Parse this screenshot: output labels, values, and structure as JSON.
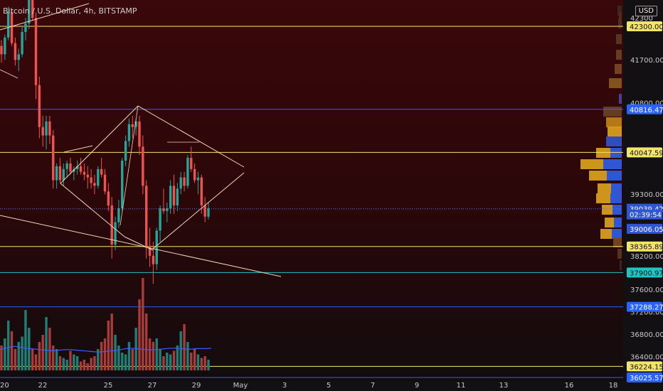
{
  "title": "Bitcoin / U.S. Dollar, 4h, BITSTAMP",
  "currency_button": "USD",
  "colors": {
    "up": "#26a69a",
    "down": "#ef5350",
    "vol_up": "#1f7f76",
    "vol_down": "#a93b3a",
    "yellow": "#f3e46a",
    "blue": "#2962ff",
    "cyan": "#21c4c4",
    "trend": "#f1d7b4",
    "profile_orange": "#e0a51f",
    "profile_blue": "#2f56d3"
  },
  "chart_data": {
    "type": "candlestick",
    "title": "Bitcoin / U.S. Dollar, 4h, BITSTAMP",
    "y_axis_ticks": [
      42300,
      41700,
      40800,
      40047.59,
      39300,
      39039.42,
      39006.05,
      38365.89,
      38200,
      37900.97,
      37600,
      37288.27,
      37200,
      36800,
      36400,
      36224.15,
      36025.57
    ],
    "x_axis_ticks": [
      "20",
      "22",
      "25",
      "27",
      "29",
      "May",
      "3",
      "5",
      "7",
      "9",
      "11",
      "13",
      "16",
      "18"
    ],
    "horizontal_levels": [
      {
        "value": 42300.0,
        "color": "yellow",
        "label": "42300.00"
      },
      {
        "value": 40816.47,
        "color": "blue",
        "label": "40816.47"
      },
      {
        "value": 40047.59,
        "color": "yellow",
        "label": "40047.59"
      },
      {
        "value": 39039.42,
        "color": "blue",
        "label": "39039.42",
        "dotted": true
      },
      {
        "value": 38365.89,
        "color": "yellow",
        "label": "38365.89"
      },
      {
        "value": 37900.97,
        "color": "cyan",
        "label": "37900.97"
      },
      {
        "value": 37288.27,
        "color": "blue",
        "label": "37288.27"
      },
      {
        "value": 36224.15,
        "color": "yellow",
        "label": "36224.15"
      },
      {
        "value": 36025.57,
        "color": "blue",
        "label": "36025.57"
      }
    ],
    "last_price_labels": [
      {
        "value": 39039.42,
        "label": "39039.42"
      },
      {
        "value": 39006.05,
        "label": "02:39:54"
      },
      {
        "value": 38900.0,
        "label": "39006.05"
      }
    ],
    "candles": [
      [
        41950,
        42050,
        41650,
        41800
      ],
      [
        41800,
        42150,
        41700,
        42100
      ],
      [
        42100,
        42650,
        42050,
        42550
      ],
      [
        42550,
        42600,
        41950,
        42000
      ],
      [
        42000,
        42100,
        41600,
        41700
      ],
      [
        41700,
        41900,
        41500,
        41800
      ],
      [
        41800,
        42300,
        41750,
        42200
      ],
      [
        42200,
        42450,
        42050,
        42350
      ],
      [
        42350,
        42950,
        42250,
        42900
      ],
      [
        42900,
        43050,
        42400,
        42450
      ],
      [
        42450,
        42550,
        41000,
        41250
      ],
      [
        41250,
        41400,
        40300,
        40500
      ],
      [
        40500,
        40700,
        40150,
        40350
      ],
      [
        40350,
        40700,
        40100,
        40600
      ],
      [
        40600,
        40700,
        40200,
        40350
      ],
      [
        40350,
        40450,
        39400,
        39550
      ],
      [
        39550,
        39850,
        39400,
        39800
      ],
      [
        39800,
        39950,
        39500,
        39550
      ],
      [
        39550,
        39850,
        39450,
        39750
      ],
      [
        39750,
        39900,
        39600,
        39850
      ],
      [
        39850,
        39950,
        39650,
        39700
      ],
      [
        39700,
        39800,
        39550,
        39750
      ],
      [
        39750,
        39900,
        39650,
        39800
      ],
      [
        39800,
        39950,
        39650,
        39700
      ],
      [
        39700,
        39850,
        39550,
        39650
      ],
      [
        39650,
        39800,
        39400,
        39600
      ],
      [
        39600,
        39750,
        39400,
        39500
      ],
      [
        39500,
        39650,
        39300,
        39450
      ],
      [
        39450,
        39800,
        39400,
        39750
      ],
      [
        39750,
        39950,
        39600,
        39650
      ],
      [
        39650,
        39750,
        39300,
        39350
      ],
      [
        39350,
        39500,
        39000,
        39100
      ],
      [
        39100,
        39250,
        38150,
        38400
      ],
      [
        38400,
        38900,
        38300,
        38800
      ],
      [
        38800,
        39200,
        38700,
        39050
      ],
      [
        39050,
        39950,
        39000,
        39900
      ],
      [
        39900,
        40350,
        39800,
        40250
      ],
      [
        40250,
        40650,
        40150,
        40550
      ],
      [
        40550,
        40700,
        40300,
        40500
      ],
      [
        40500,
        40650,
        40350,
        40600
      ],
      [
        40600,
        40700,
        40000,
        40150
      ],
      [
        40150,
        40350,
        39300,
        39450
      ],
      [
        39450,
        39550,
        38150,
        38350
      ],
      [
        38350,
        38700,
        38000,
        38200
      ],
      [
        38200,
        38450,
        37700,
        38050
      ],
      [
        38050,
        38700,
        37950,
        38650
      ],
      [
        38650,
        39100,
        38450,
        39050
      ],
      [
        39050,
        39400,
        38950,
        39000
      ],
      [
        39000,
        39150,
        38800,
        39050
      ],
      [
        39050,
        39550,
        38950,
        39450
      ],
      [
        39450,
        39650,
        38950,
        39100
      ],
      [
        39100,
        39500,
        39000,
        39400
      ],
      [
        39400,
        39700,
        39300,
        39600
      ],
      [
        39600,
        39700,
        39350,
        39450
      ],
      [
        39450,
        40000,
        39400,
        39950
      ],
      [
        39950,
        40150,
        39700,
        39750
      ],
      [
        39750,
        39850,
        39500,
        39550
      ],
      [
        39550,
        39700,
        39300,
        39600
      ],
      [
        39600,
        39650,
        38950,
        39100
      ],
      [
        39100,
        39250,
        38800,
        38900
      ],
      [
        38900,
        39150,
        38850,
        39050
      ]
    ],
    "volume": [
      70,
      90,
      140,
      110,
      60,
      80,
      95,
      170,
      120,
      60,
      45,
      80,
      100,
      150,
      120,
      70,
      60,
      40,
      35,
      30,
      55,
      45,
      40,
      25,
      30,
      20,
      35,
      40,
      60,
      80,
      90,
      140,
      160,
      100,
      70,
      50,
      45,
      80,
      60,
      120,
      200,
      260,
      160,
      90,
      80,
      90,
      60,
      40,
      50,
      45,
      55,
      70,
      110,
      130,
      80,
      50,
      60,
      45,
      35,
      40,
      30
    ],
    "volume_ma": [
      0.45,
      0.48,
      0.5,
      0.52,
      0.5,
      0.48,
      0.47,
      0.46,
      0.45,
      0.44,
      0.43,
      0.43,
      0.44,
      0.45,
      0.45,
      0.44,
      0.43,
      0.42,
      0.41,
      0.4,
      0.4,
      0.41,
      0.42,
      0.43,
      0.45,
      0.47,
      0.48,
      0.47,
      0.46,
      0.45,
      0.44,
      0.45,
      0.46,
      0.47,
      0.48,
      0.48,
      0.47,
      0.46,
      0.46,
      0.47,
      0.47,
      0.47,
      0.48
    ]
  }
}
